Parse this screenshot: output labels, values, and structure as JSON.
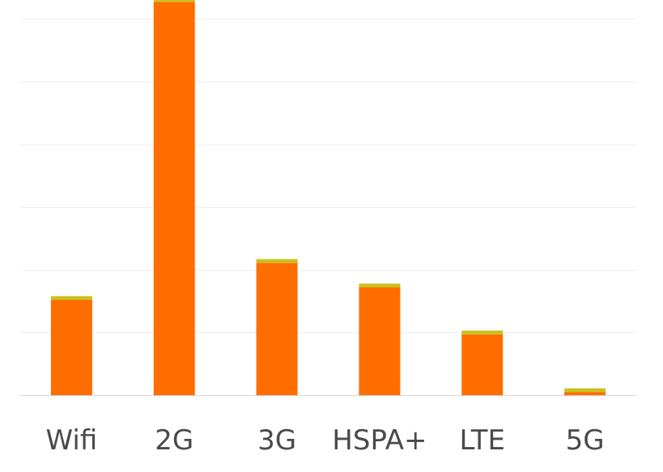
{
  "chart_data": {
    "type": "bar",
    "stacked": true,
    "title": "",
    "xlabel": "",
    "ylabel": "",
    "ylim": [
      0,
      6.3
    ],
    "yticks": [
      0,
      1,
      2,
      3,
      4,
      5,
      6
    ],
    "grid": true,
    "categories": [
      "Wifi",
      "2G",
      "3G",
      "HSPA+",
      "LTE",
      "5G"
    ],
    "series": [
      {
        "values": [
          1.52,
          6.27,
          2.11,
          1.72,
          0.97,
          0.05
        ],
        "color": "#ff6d00"
      },
      {
        "values": [
          0.06,
          0.07,
          0.06,
          0.06,
          0.06,
          0.06
        ],
        "color": "#c9c21f"
      }
    ]
  }
}
